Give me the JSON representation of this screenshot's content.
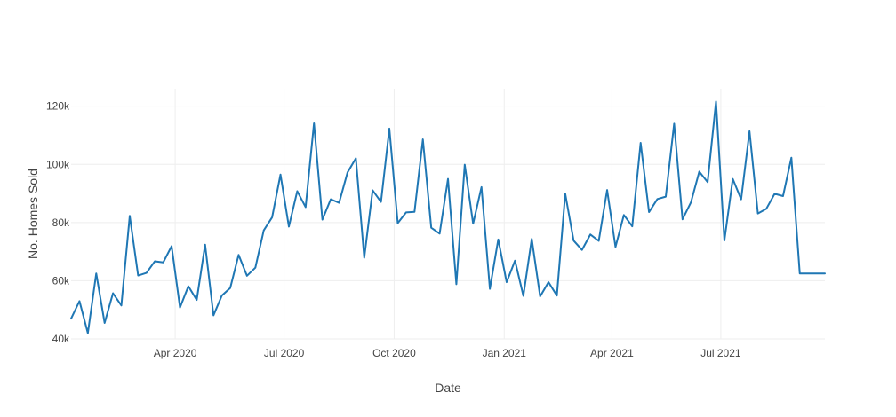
{
  "chart_data": {
    "type": "line",
    "title": "",
    "xlabel": "Date",
    "ylabel": "No. Homes Sold",
    "x_type": "date",
    "xlim": [
      "2020-01-05",
      "2021-09-26"
    ],
    "ylim": [
      40000,
      126000
    ],
    "x_ticks": [
      {
        "date": "2020-04-01",
        "label": "Apr 2020"
      },
      {
        "date": "2020-07-01",
        "label": "Jul 2020"
      },
      {
        "date": "2020-10-01",
        "label": "Oct 2020"
      },
      {
        "date": "2021-01-01",
        "label": "Jan 2021"
      },
      {
        "date": "2021-04-01",
        "label": "Apr 2021"
      },
      {
        "date": "2021-07-01",
        "label": "Jul 2021"
      }
    ],
    "y_ticks": [
      {
        "value": 40000,
        "label": "40k"
      },
      {
        "value": 60000,
        "label": "60k"
      },
      {
        "value": 80000,
        "label": "80k"
      },
      {
        "value": 100000,
        "label": "100k"
      },
      {
        "value": 120000,
        "label": "120k"
      }
    ],
    "grid": true,
    "legend": false,
    "series": [
      {
        "color": "#1f77b4",
        "x": [
          "2020-01-05",
          "2020-01-12",
          "2020-01-19",
          "2020-01-26",
          "2020-02-02",
          "2020-02-09",
          "2020-02-16",
          "2020-02-23",
          "2020-03-01",
          "2020-03-08",
          "2020-03-15",
          "2020-03-22",
          "2020-03-29",
          "2020-04-05",
          "2020-04-12",
          "2020-04-19",
          "2020-04-26",
          "2020-05-03",
          "2020-05-10",
          "2020-05-17",
          "2020-05-24",
          "2020-05-31",
          "2020-06-07",
          "2020-06-14",
          "2020-06-21",
          "2020-06-28",
          "2020-07-05",
          "2020-07-12",
          "2020-07-19",
          "2020-07-26",
          "2020-08-02",
          "2020-08-09",
          "2020-08-16",
          "2020-08-23",
          "2020-08-30",
          "2020-09-06",
          "2020-09-13",
          "2020-09-20",
          "2020-09-27",
          "2020-10-04",
          "2020-10-11",
          "2020-10-18",
          "2020-10-25",
          "2020-11-01",
          "2020-11-08",
          "2020-11-15",
          "2020-11-22",
          "2020-11-29",
          "2020-12-06",
          "2020-12-13",
          "2020-12-20",
          "2020-12-27",
          "2021-01-03",
          "2021-01-10",
          "2021-01-17",
          "2021-01-24",
          "2021-01-31",
          "2021-02-07",
          "2021-02-14",
          "2021-02-21",
          "2021-02-28",
          "2021-03-07",
          "2021-03-14",
          "2021-03-21",
          "2021-03-28",
          "2021-04-04",
          "2021-04-11",
          "2021-04-18",
          "2021-04-25",
          "2021-05-02",
          "2021-05-09",
          "2021-05-16",
          "2021-05-23",
          "2021-05-30",
          "2021-06-06",
          "2021-06-13",
          "2021-06-20",
          "2021-06-27",
          "2021-07-04",
          "2021-07-11",
          "2021-07-18",
          "2021-07-25",
          "2021-08-01",
          "2021-08-08",
          "2021-08-15",
          "2021-08-22",
          "2021-08-29",
          "2021-09-05",
          "2021-09-12",
          "2021-09-19",
          "2021-09-26"
        ],
        "y": [
          47000,
          53000,
          42000,
          62500,
          45500,
          55700,
          51500,
          82300,
          61800,
          62700,
          66700,
          66300,
          71900,
          50800,
          58100,
          53400,
          72400,
          48100,
          54900,
          57500,
          68900,
          61700,
          64500,
          77300,
          81800,
          96500,
          78600,
          90800,
          85300,
          114100,
          81000,
          88000,
          86800,
          97200,
          102100,
          67900,
          91100,
          87100,
          112300,
          79800,
          83500,
          83700,
          108600,
          78200,
          76200,
          95000,
          58800,
          99900,
          79600,
          92200,
          57200,
          74200,
          59500,
          66900,
          54800,
          74400,
          54600,
          59500,
          54900,
          89900,
          73800,
          70600,
          75900,
          73700,
          91200,
          71600,
          82600,
          78700,
          107400,
          83600,
          88100,
          88900,
          114000,
          81100,
          86900,
          97500,
          93900,
          121600,
          73800,
          95000,
          88000,
          111400,
          83100,
          84700,
          89900,
          89100,
          102300,
          62500,
          62500,
          62500,
          62500
        ]
      }
    ]
  }
}
